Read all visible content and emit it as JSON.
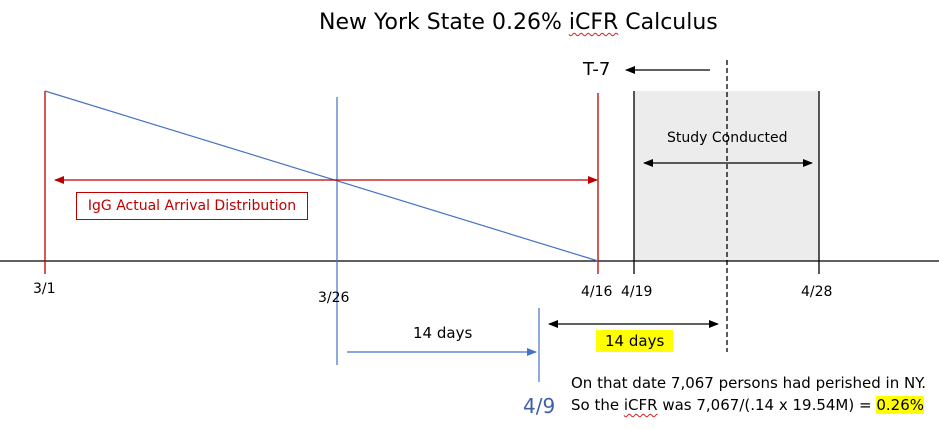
{
  "title": {
    "prefix": "New York State 0.26% ",
    "underlined": "iCFR",
    "suffix": " Calculus"
  },
  "marker_label": "T-7",
  "study_label": "Study Conducted",
  "distribution_label": "IgG Actual Arrival Distribution",
  "dates": {
    "mar1": "3/1",
    "mar26": "3/26",
    "apr16": "4/16",
    "apr19": "4/19",
    "apr28": "4/28",
    "apr9": "4/9"
  },
  "intervals": {
    "first": "14 days",
    "second": "14 days"
  },
  "note": {
    "line1": "On that date 7,067 persons had perished in NY.",
    "line2_prefix": "So the ",
    "line2_underlined": "iCFR",
    "line2_middle": " was 7,067/(.14 x 19.54M) = ",
    "line2_highlight": "0.26%"
  },
  "colors": {
    "red_line": "#c00000",
    "blue_line": "#4472c4",
    "study_fill": "#ececec",
    "highlight": "#ffff00",
    "date_blue": "#3c5fa8"
  }
}
